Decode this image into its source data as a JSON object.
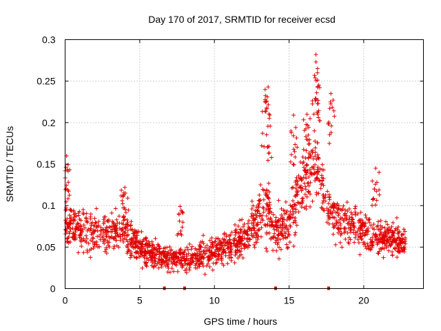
{
  "chart_data": {
    "type": "scatter",
    "title": "Day 170 of 2017, SRMTID for receiver ecsd",
    "xlabel": "GPS time / hours",
    "ylabel": "SRMTID / TECUs",
    "xlim": [
      0,
      24
    ],
    "ylim": [
      0,
      0.3
    ],
    "x_ticks": [
      0,
      5,
      10,
      15,
      20
    ],
    "x_tick_labels": [
      "0",
      "5",
      "10",
      "15",
      "20"
    ],
    "y_ticks": [
      0,
      0.05,
      0.1,
      0.15,
      0.2,
      0.25,
      0.3
    ],
    "y_tick_labels": [
      "0",
      "0.05",
      "0.1",
      "0.15",
      "0.2",
      "0.25",
      "0.3"
    ],
    "grid": true,
    "marker": "+",
    "color": "#e00000",
    "data_gap_markers_x": [
      6.65,
      8.0,
      14.1,
      17.65
    ],
    "series": [
      {
        "name": "SRMTID",
        "trend": [
          {
            "x": 0.0,
            "median": 0.085,
            "spread": 0.035
          },
          {
            "x": 0.5,
            "median": 0.075,
            "spread": 0.03
          },
          {
            "x": 1.0,
            "median": 0.07,
            "spread": 0.03
          },
          {
            "x": 2.0,
            "median": 0.065,
            "spread": 0.025
          },
          {
            "x": 3.0,
            "median": 0.07,
            "spread": 0.025
          },
          {
            "x": 4.0,
            "median": 0.07,
            "spread": 0.025
          },
          {
            "x": 5.0,
            "median": 0.05,
            "spread": 0.02
          },
          {
            "x": 6.0,
            "median": 0.04,
            "spread": 0.015
          },
          {
            "x": 7.0,
            "median": 0.035,
            "spread": 0.015
          },
          {
            "x": 8.0,
            "median": 0.035,
            "spread": 0.015
          },
          {
            "x": 9.0,
            "median": 0.04,
            "spread": 0.015
          },
          {
            "x": 10.0,
            "median": 0.045,
            "spread": 0.018
          },
          {
            "x": 11.0,
            "median": 0.05,
            "spread": 0.02
          },
          {
            "x": 12.0,
            "median": 0.06,
            "spread": 0.02
          },
          {
            "x": 12.8,
            "median": 0.08,
            "spread": 0.03
          },
          {
            "x": 13.5,
            "median": 0.1,
            "spread": 0.05
          },
          {
            "x": 14.0,
            "median": 0.07,
            "spread": 0.025
          },
          {
            "x": 15.0,
            "median": 0.08,
            "spread": 0.03
          },
          {
            "x": 16.0,
            "median": 0.13,
            "spread": 0.04
          },
          {
            "x": 16.8,
            "median": 0.16,
            "spread": 0.05
          },
          {
            "x": 17.5,
            "median": 0.1,
            "spread": 0.03
          },
          {
            "x": 18.5,
            "median": 0.08,
            "spread": 0.025
          },
          {
            "x": 19.5,
            "median": 0.075,
            "spread": 0.025
          },
          {
            "x": 20.5,
            "median": 0.065,
            "spread": 0.025
          },
          {
            "x": 21.5,
            "median": 0.06,
            "spread": 0.02
          },
          {
            "x": 22.8,
            "median": 0.055,
            "spread": 0.02
          }
        ],
        "peaks": [
          {
            "x": 0.1,
            "y": 0.16
          },
          {
            "x": 4.0,
            "y": 0.122
          },
          {
            "x": 7.7,
            "y": 0.099
          },
          {
            "x": 13.4,
            "y": 0.24
          },
          {
            "x": 13.6,
            "y": 0.243
          },
          {
            "x": 15.3,
            "y": 0.209
          },
          {
            "x": 16.2,
            "y": 0.21
          },
          {
            "x": 16.8,
            "y": 0.282
          },
          {
            "x": 16.9,
            "y": 0.26
          },
          {
            "x": 17.8,
            "y": 0.235
          },
          {
            "x": 20.8,
            "y": 0.145
          }
        ],
        "point_count": 1800
      }
    ]
  }
}
